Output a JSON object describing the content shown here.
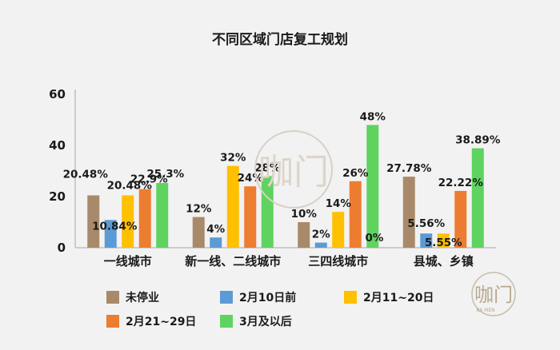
{
  "chart_data": {
    "type": "bar",
    "title": "不同区域门店复工规划",
    "categories": [
      "一线城市",
      "新一线、二线城市",
      "三四线城市",
      "县城、乡镇"
    ],
    "ylim": [
      0,
      60
    ],
    "yticks": [
      0,
      20,
      40,
      60
    ],
    "grid": false,
    "legend_position": "bottom",
    "series": [
      {
        "name": "未停业",
        "color": "#a88a6a",
        "values": [
          20.48,
          12,
          10,
          27.78
        ],
        "labels": [
          "20.48%",
          "12%",
          "10%",
          "27.78%"
        ]
      },
      {
        "name": "2月10日前",
        "color": "#5b9bd5",
        "values": [
          10.84,
          4,
          2,
          5.56
        ],
        "labels": [
          "10.84%",
          "4%",
          "2%",
          "5.56%"
        ]
      },
      {
        "name": "2月11~20日",
        "color": "#ffc000",
        "values": [
          20.48,
          32,
          14,
          5.55
        ],
        "labels": [
          "20.48%",
          "32%",
          "14%",
          "5.55%"
        ]
      },
      {
        "name": "2月21~29日",
        "color": "#ed7d31",
        "values": [
          22.9,
          24,
          26,
          22.22
        ],
        "labels": [
          "22.9%",
          "24%",
          "26%",
          "22.22%"
        ]
      },
      {
        "name": "3月及以后",
        "color": "#5fd35f",
        "values": [
          25.3,
          28,
          48,
          38.89
        ],
        "labels": [
          "25.3%",
          "28%",
          "48%",
          "38.89%"
        ]
      }
    ],
    "annotations": [
      "0%"
    ]
  },
  "watermark": {
    "text": "咖门",
    "subtext": "KA MEN"
  }
}
